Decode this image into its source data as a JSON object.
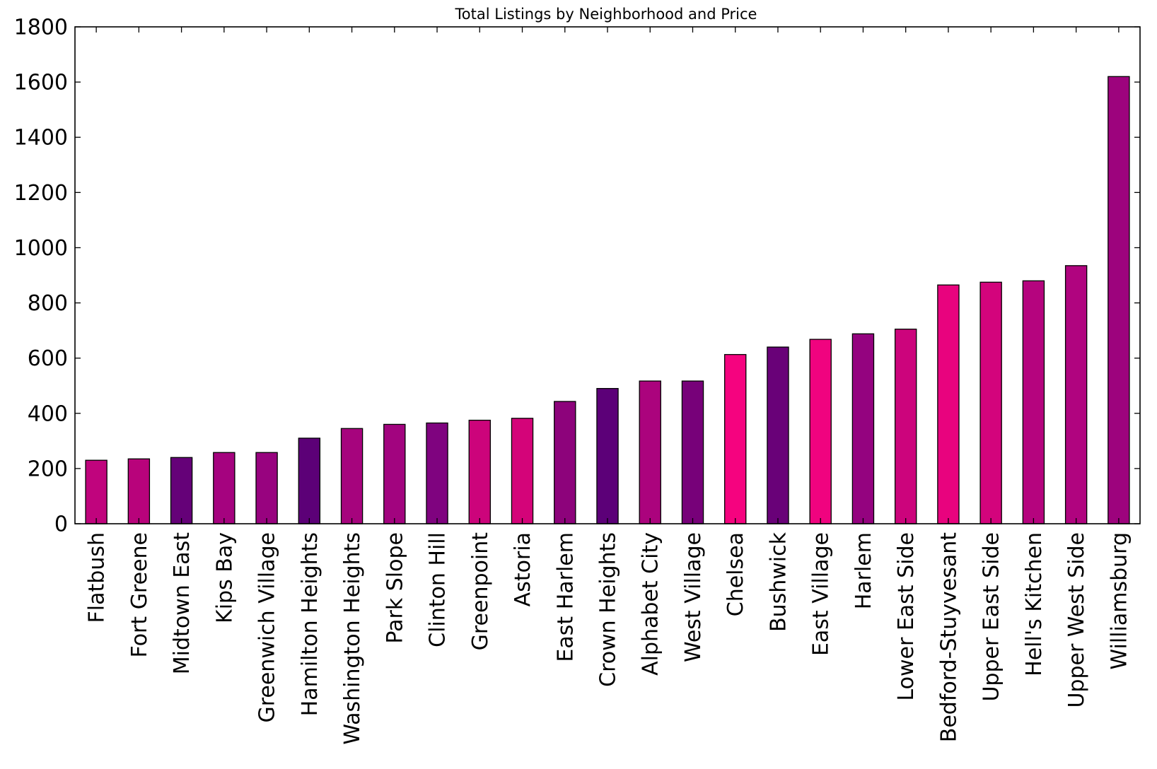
{
  "chart_data": {
    "type": "bar",
    "title": "Total Listings by Neighborhood and Price",
    "xlabel": "",
    "ylabel": "",
    "ylim": [
      0,
      1800
    ],
    "yticks": [
      0,
      200,
      400,
      600,
      800,
      1000,
      1200,
      1400,
      1600,
      1800
    ],
    "grid": false,
    "legend": "none",
    "categories": [
      "Flatbush",
      "Fort Greene",
      "Midtown East",
      "Kips Bay",
      "Greenwich Village",
      "Hamilton Heights",
      "Washington Heights",
      "Park Slope",
      "Clinton Hill",
      "Greenpoint",
      "Astoria",
      "East Harlem",
      "Crown Heights",
      "Alphabet City",
      "West Village",
      "Chelsea",
      "Bushwick",
      "East Village",
      "Harlem",
      "Lower East Side",
      "Bedford-Stuyvesant",
      "Upper East Side",
      "Hell's Kitchen",
      "Upper West Side",
      "Williamsburg"
    ],
    "values": [
      230,
      235,
      240,
      258,
      258,
      310,
      345,
      360,
      365,
      375,
      382,
      443,
      490,
      517,
      517,
      613,
      640,
      668,
      688,
      705,
      865,
      875,
      880,
      935,
      1620
    ],
    "colors": [
      "#c0047d",
      "#b8037b",
      "#650178",
      "#a5037f",
      "#98037f",
      "#5c0077",
      "#a6047d",
      "#a2047f",
      "#7f037f",
      "#cc047b",
      "#d40479",
      "#8d037b",
      "#5c0078",
      "#ab037d",
      "#770179",
      "#f5037f",
      "#690178",
      "#f0037f",
      "#94037f",
      "#cc047c",
      "#e8037e",
      "#d3047c",
      "#b5047e",
      "#b0047f",
      "#9d037d"
    ]
  }
}
